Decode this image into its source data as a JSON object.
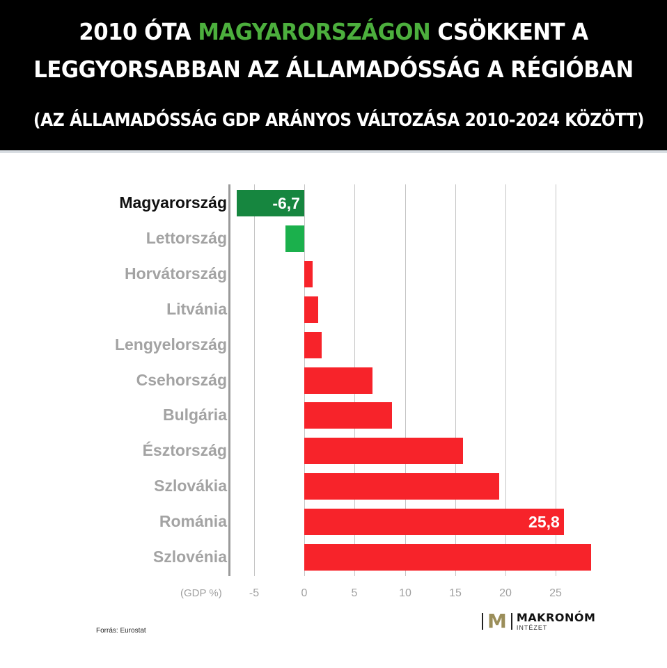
{
  "header": {
    "title_line1_pre": "2010 ÓTA ",
    "title_line1_highlight": "MAGYARORSZÁGON",
    "title_line1_post": " CSÖKKENT A",
    "title_line2": "LEGGYORSABBAN AZ ÁLLAMADÓSSÁG A RÉGIÓBAN",
    "subtitle": "(AZ ÁLLAMADÓSSÁG GDP ARÁNYOS VÁLTOZÁSA 2010-2024 KÖZÖTT)"
  },
  "colors": {
    "header_bg": "#000000",
    "highlight_green": "#4caf3d",
    "bar_hungary": "#16863f",
    "bar_negative": "#1bb04c",
    "bar_positive": "#f7232a",
    "label_gray": "#a3a3a3"
  },
  "axis": {
    "unit_label": "(GDP %)",
    "ticks": [
      "-5",
      "0",
      "5",
      "10",
      "15",
      "20",
      "25"
    ]
  },
  "source": "Forrás: Eurostat",
  "logo": {
    "mark": "M",
    "name": "MAKRONÓM",
    "sub": "INTÉZET"
  },
  "chart_data": {
    "type": "bar",
    "orientation": "horizontal",
    "title": "2010 ÓTA MAGYARORSZÁGON CSÖKKENT A LEGGYORSABBAN AZ ÁLLAMADÓSSÁG A RÉGIÓBAN",
    "subtitle": "(AZ ÁLLAMADÓSSÁG GDP ARÁNYOS VÁLTOZÁSA 2010-2024 KÖZÖTT)",
    "xlabel": "(GDP %)",
    "ylabel": "",
    "categories": [
      "Magyarország",
      "Lettország",
      "Horvátország",
      "Litvánia",
      "Lengyelország",
      "Csehország",
      "Bulgária",
      "Észtország",
      "Szlovákia",
      "Románia",
      "Szlovénia"
    ],
    "values": [
      -6.7,
      -1.9,
      0.8,
      1.4,
      1.7,
      6.8,
      8.7,
      15.8,
      19.4,
      25.8,
      28.5
    ],
    "data_labels": {
      "Magyarország": "-6,7",
      "Románia": "25,8"
    },
    "xlim": [
      -7.4,
      30
    ],
    "xticks": [
      -5,
      0,
      5,
      10,
      15,
      20,
      25
    ],
    "grid": true,
    "legend": "none",
    "annotation": "Forrás: Eurostat"
  }
}
